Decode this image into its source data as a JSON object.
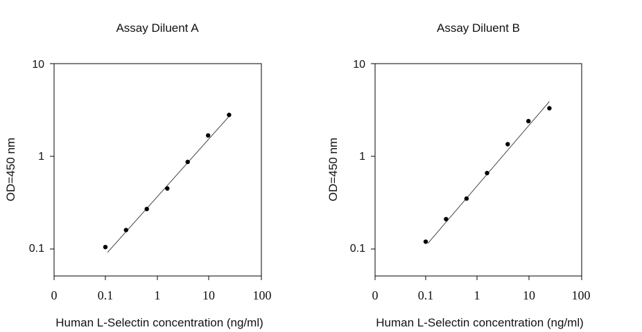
{
  "chart_data": [
    {
      "type": "scatter",
      "title": "Assay Diluent A",
      "xlabel": "Human L-Selectin concentration (ng/ml)",
      "ylabel": "OD=450 nm",
      "xscale": "log",
      "yscale": "log",
      "x_ticks": [
        "0",
        "0.1",
        "1",
        "10",
        "100"
      ],
      "y_ticks": [
        "0.1",
        "1",
        "10"
      ],
      "xlim": [
        0.01,
        100
      ],
      "ylim": [
        0.03,
        10
      ],
      "grid": false,
      "legend": "none",
      "series": [
        {
          "x": [
            0.1,
            0.25,
            0.625,
            1.56,
            3.9,
            9.75,
            24.4
          ],
          "y": [
            0.105,
            0.16,
            0.27,
            0.45,
            0.87,
            1.68,
            2.8
          ]
        }
      ],
      "fit": {
        "x": [
          0.11,
          24.4
        ],
        "y": [
          0.092,
          2.7
        ]
      }
    },
    {
      "type": "scatter",
      "title": "Assay Diluent B",
      "xlabel": "Human L-Selectin concentration (ng/ml)",
      "ylabel": "OD=450 nm",
      "xscale": "log",
      "yscale": "log",
      "x_ticks": [
        "0",
        "0.1",
        "1",
        "10",
        "100"
      ],
      "y_ticks": [
        "0.1",
        "1",
        "10"
      ],
      "xlim": [
        0.01,
        100
      ],
      "ylim": [
        0.03,
        10
      ],
      "grid": false,
      "legend": "none",
      "series": [
        {
          "x": [
            0.1,
            0.25,
            0.625,
            1.56,
            3.9,
            9.75,
            24.4
          ],
          "y": [
            0.12,
            0.21,
            0.35,
            0.66,
            1.35,
            2.4,
            3.3
          ]
        }
      ],
      "fit": {
        "x": [
          0.11,
          24.4
        ],
        "y": [
          0.115,
          3.9
        ]
      }
    }
  ]
}
